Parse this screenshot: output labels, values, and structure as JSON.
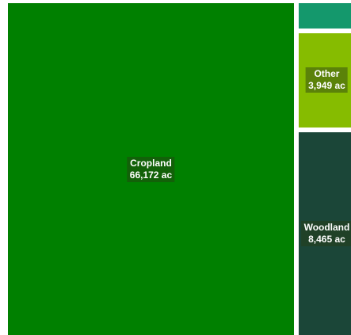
{
  "chart_data": {
    "type": "treemap",
    "unit": "ac",
    "items": [
      {
        "name": "Cropland",
        "value_label": "66,172 ac",
        "value": 66172,
        "color": "#008000"
      },
      {
        "name": "Woodland",
        "value_label": "8,465 ac",
        "value": 8465,
        "color": "#1b4638"
      },
      {
        "name": "Other",
        "value_label": "3,949 ac",
        "value": 3949,
        "color": "#86bc00"
      },
      {
        "name": "",
        "value_label": "",
        "value": 1050,
        "color": "#14986c"
      }
    ]
  }
}
